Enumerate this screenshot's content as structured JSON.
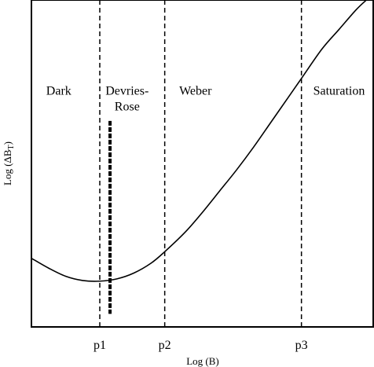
{
  "chart_data": {
    "type": "line",
    "xlabel": "Log (B)",
    "ylabel": "Log (ΔB",
    "ylabel_sub": "T",
    "ylabel_close": ")",
    "grid": false,
    "xlim": [
      0,
      10
    ],
    "ylim": [
      0,
      10
    ],
    "boundaries": [
      {
        "name": "p1",
        "x": 2.0
      },
      {
        "name": "p2",
        "x": 3.9
      },
      {
        "name": "p3",
        "x": 7.9
      }
    ],
    "regions": [
      {
        "lines": [
          "Dark"
        ],
        "x": 0.8
      },
      {
        "lines": [
          "Devries-",
          "Rose"
        ],
        "x": 2.8
      },
      {
        "lines": [
          "Weber"
        ],
        "x": 4.8
      },
      {
        "lines": [
          "Saturation"
        ],
        "x": 9.0
      }
    ],
    "region_label_y": 7.1,
    "series": [
      {
        "x": [
          0.0,
          0.5,
          1.0,
          1.5,
          2.0,
          2.5,
          3.0,
          3.5,
          3.9,
          4.5,
          5.0,
          5.5,
          6.0,
          6.5,
          7.0,
          7.5,
          7.9,
          8.5,
          9.0,
          9.5,
          9.8
        ],
        "y": [
          2.1,
          1.8,
          1.55,
          1.42,
          1.4,
          1.47,
          1.65,
          1.95,
          2.3,
          2.9,
          3.5,
          4.15,
          4.8,
          5.5,
          6.25,
          7.0,
          7.6,
          8.5,
          9.1,
          9.7,
          10.0
        ]
      }
    ],
    "marker_bar": {
      "x": 2.3,
      "y_from": 0.4,
      "y_to": 6.3
    }
  }
}
